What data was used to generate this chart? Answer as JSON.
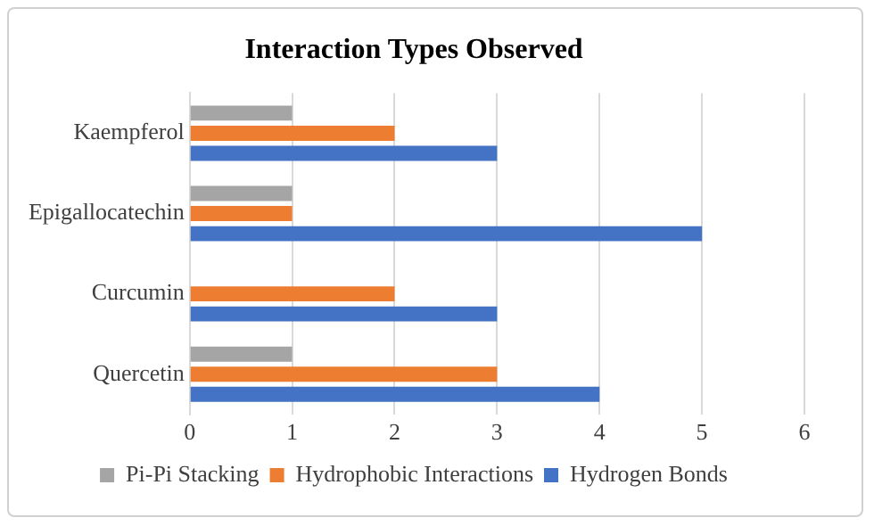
{
  "chart_data": {
    "type": "bar",
    "orientation": "horizontal",
    "title": "Interaction Types Observed",
    "categories": [
      "Kaempferol",
      "Epigallocatechin",
      "Curcumin",
      "Quercetin"
    ],
    "series": [
      {
        "name": "Pi-Pi Stacking",
        "color": "#a5a5a5",
        "values": [
          1,
          1,
          0,
          1
        ]
      },
      {
        "name": "Hydrophobic Interactions",
        "color": "#ed7d31",
        "values": [
          2,
          1,
          2,
          3
        ]
      },
      {
        "name": "Hydrogen Bonds",
        "color": "#4472c4",
        "values": [
          3,
          5,
          3,
          4
        ]
      }
    ],
    "xlim": [
      0,
      6
    ],
    "xticks": [
      0,
      1,
      2,
      3,
      4,
      5,
      6
    ],
    "grid": "x",
    "legend": "bottom"
  }
}
